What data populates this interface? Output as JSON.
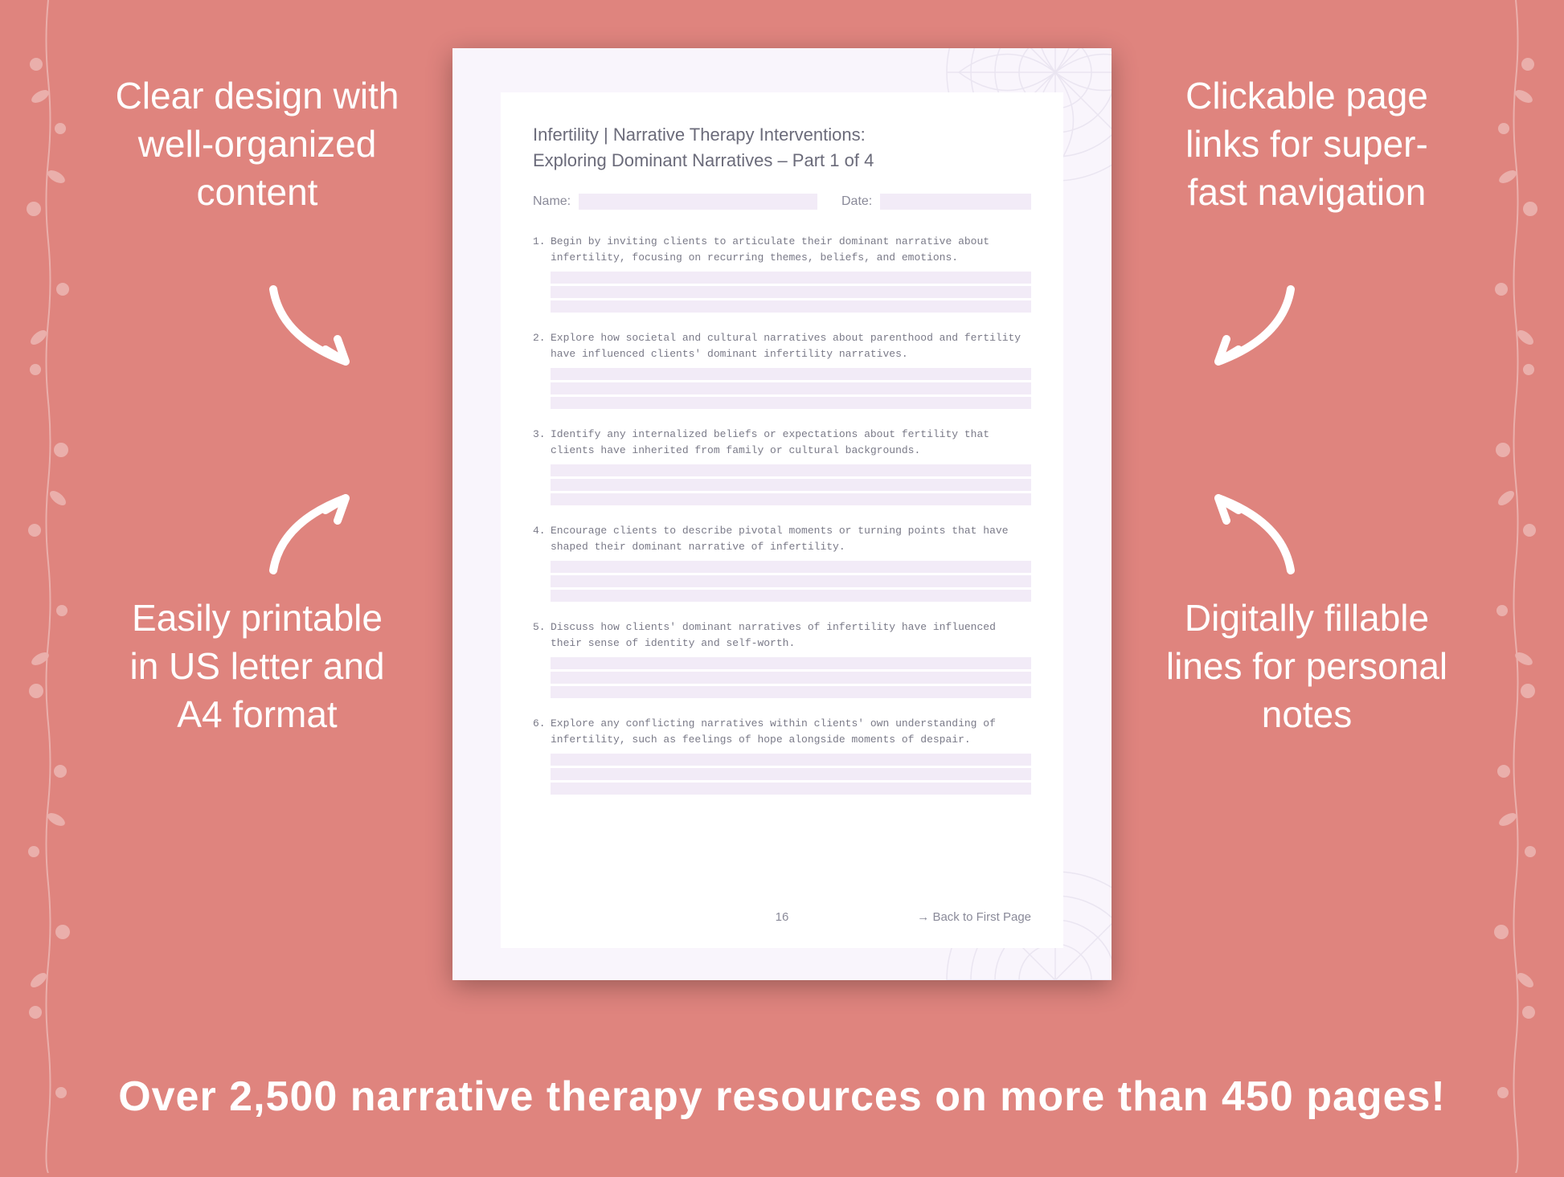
{
  "background_color": "#df847e",
  "text_color": "#ffffff",
  "callouts": {
    "top_left": "Clear design with well-organized content",
    "top_right": "Clickable page links for super-fast navigation",
    "bottom_left": "Easily printable in US letter and A4 format",
    "bottom_right": "Digitally fillable lines for personal notes"
  },
  "banner": "Over 2,500 narrative therapy resources on more than 450 pages!",
  "document": {
    "bg_color": "#f9f5fc",
    "inner_bg": "#ffffff",
    "fill_color": "#f2ebf7",
    "text_color": "#6b6b7a",
    "muted_color": "#8a8a99",
    "title": "Infertility | Narrative Therapy Interventions:",
    "subtitle": "Exploring Dominant Narratives – Part 1 of 4",
    "name_label": "Name:",
    "date_label": "Date:",
    "questions": [
      {
        "num": "1.",
        "text": "Begin by inviting clients to articulate their dominant narrative about infertility, focusing on recurring themes, beliefs, and emotions."
      },
      {
        "num": "2.",
        "text": "Explore how societal and cultural narratives about parenthood and fertility have influenced clients' dominant infertility narratives."
      },
      {
        "num": "3.",
        "text": "Identify any internalized beliefs or expectations about fertility that clients have inherited from family or cultural backgrounds."
      },
      {
        "num": "4.",
        "text": "Encourage clients to describe pivotal moments or turning points that have shaped their dominant narrative of infertility."
      },
      {
        "num": "5.",
        "text": "Discuss how clients' dominant narratives of infertility have influenced their sense of identity and self-worth."
      },
      {
        "num": "6.",
        "text": "Explore any conflicting narratives within clients' own understanding of infertility, such as feelings of hope alongside moments of despair."
      }
    ],
    "page_number": "16",
    "back_link": "→ Back to First Page"
  }
}
